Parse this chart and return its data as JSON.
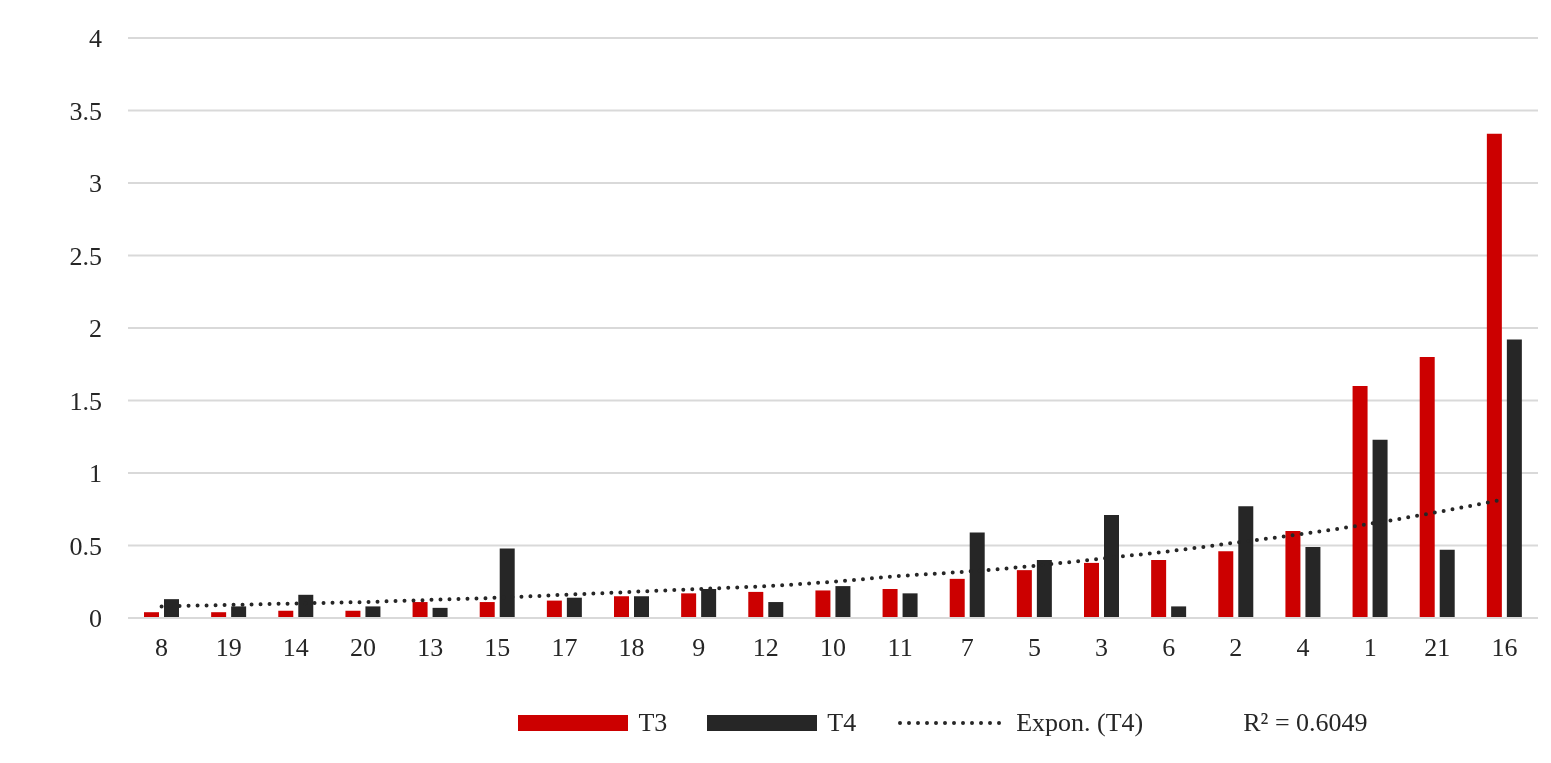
{
  "chart_data": {
    "type": "bar",
    "categories": [
      "8",
      "19",
      "14",
      "20",
      "13",
      "15",
      "17",
      "18",
      "9",
      "12",
      "10",
      "11",
      "7",
      "5",
      "3",
      "6",
      "2",
      "4",
      "1",
      "21",
      "16"
    ],
    "series": [
      {
        "name": "T3",
        "color": "#cc0000",
        "values": [
          0.04,
          0.04,
          0.05,
          0.05,
          0.11,
          0.11,
          0.12,
          0.15,
          0.17,
          0.18,
          0.19,
          0.2,
          0.27,
          0.33,
          0.38,
          0.4,
          0.46,
          0.6,
          1.6,
          1.8,
          3.34
        ]
      },
      {
        "name": "T4",
        "color": "#262626",
        "values": [
          0.13,
          0.08,
          0.16,
          0.08,
          0.07,
          0.48,
          0.14,
          0.15,
          0.2,
          0.11,
          0.22,
          0.17,
          0.59,
          0.4,
          0.71,
          0.08,
          0.77,
          0.49,
          1.23,
          0.47,
          1.92
        ]
      },
      {
        "name": "Expon. (T4)",
        "type": "line",
        "color": "#262626",
        "line_style": "dotted",
        "marker": "none",
        "x": [
          "8",
          "19",
          "14",
          "20",
          "13",
          "15",
          "17",
          "18",
          "9",
          "12",
          "10",
          "11",
          "7",
          "5",
          "3",
          "6",
          "2",
          "4",
          "1",
          "21",
          "16"
        ],
        "values": [
          0.08,
          0.09,
          0.1,
          0.11,
          0.125,
          0.14,
          0.16,
          0.18,
          0.2,
          0.22,
          0.25,
          0.29,
          0.32,
          0.36,
          0.41,
          0.46,
          0.52,
          0.58,
          0.65,
          0.73,
          0.82
        ]
      }
    ],
    "ylim": [
      0,
      4
    ],
    "yticks": [
      0,
      0.5,
      1,
      1.5,
      2,
      2.5,
      3,
      3.5,
      4
    ],
    "grid": "y",
    "legend": "bottom",
    "annotations": [
      "R² = 0.6049"
    ]
  }
}
